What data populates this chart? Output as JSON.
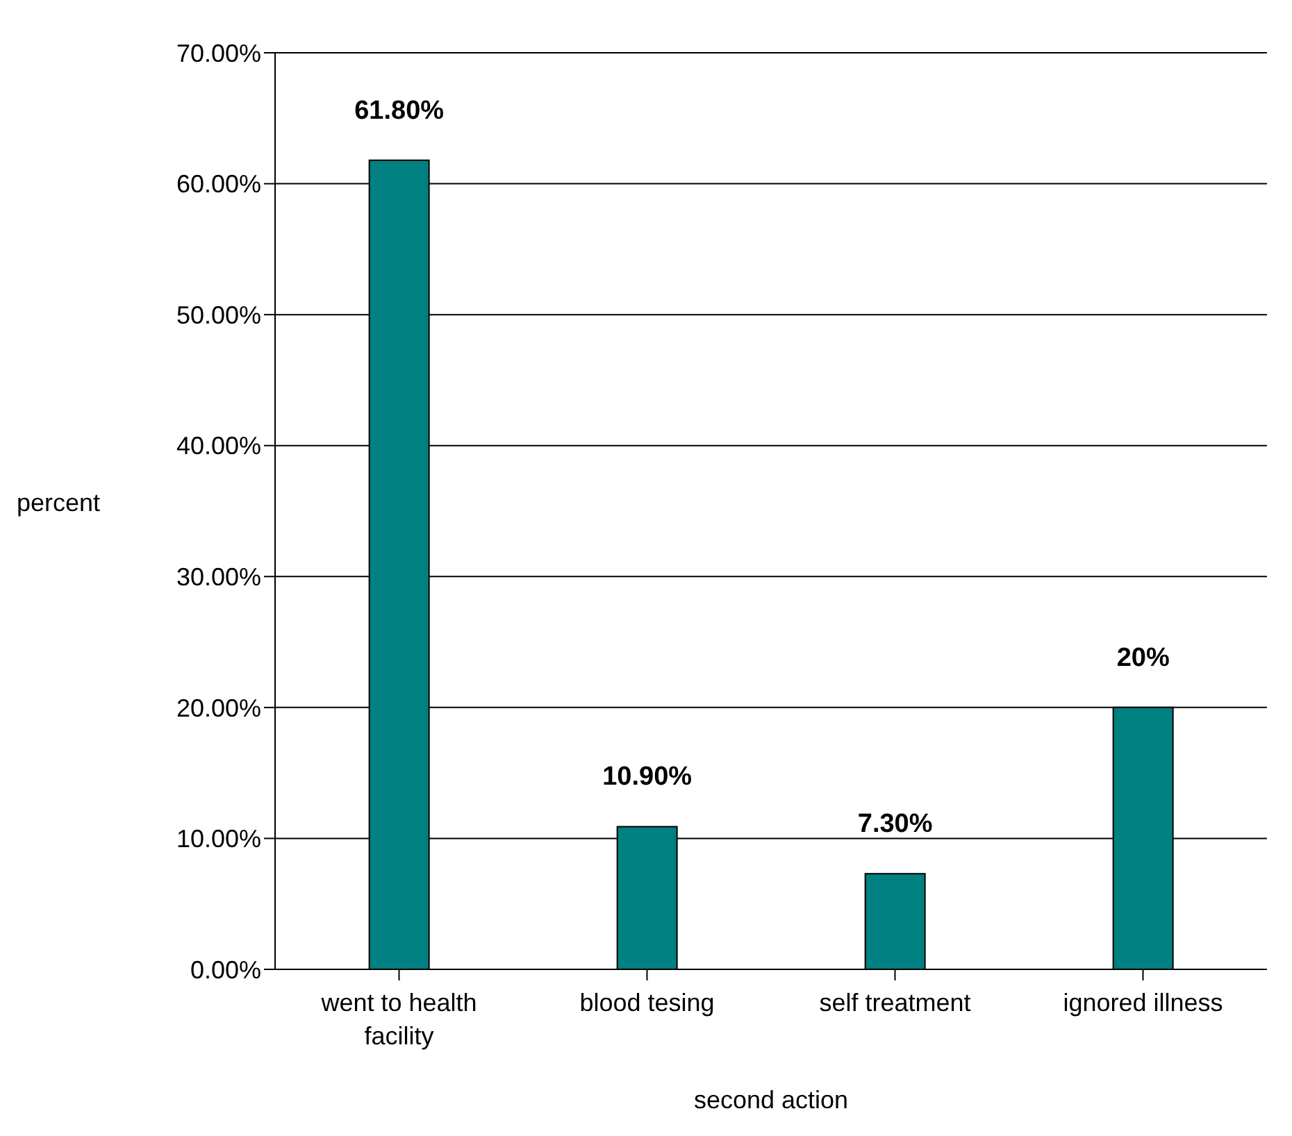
{
  "chart_data": {
    "type": "bar",
    "xlabel": "second action",
    "ylabel": "percent",
    "categories": [
      "went to health facility",
      "blood tesing",
      "self treatment",
      "ignored illness"
    ],
    "values": [
      61.8,
      10.9,
      7.3,
      20
    ],
    "value_labels": [
      "61.80%",
      "10.90%",
      "7.30%",
      "20%"
    ],
    "color": "#008080",
    "ylim": [
      0,
      70
    ],
    "yticks": [
      {
        "value": 0,
        "label": "0.00%"
      },
      {
        "value": 10,
        "label": "10.00%"
      },
      {
        "value": 20,
        "label": "20.00%"
      },
      {
        "value": 30,
        "label": "30.00%"
      },
      {
        "value": 40,
        "label": "40.00%"
      },
      {
        "value": 50,
        "label": "50.00%"
      },
      {
        "value": 60,
        "label": "60.00%"
      },
      {
        "value": 70,
        "label": "70.00%"
      }
    ],
    "grid": "y",
    "legend": false
  }
}
